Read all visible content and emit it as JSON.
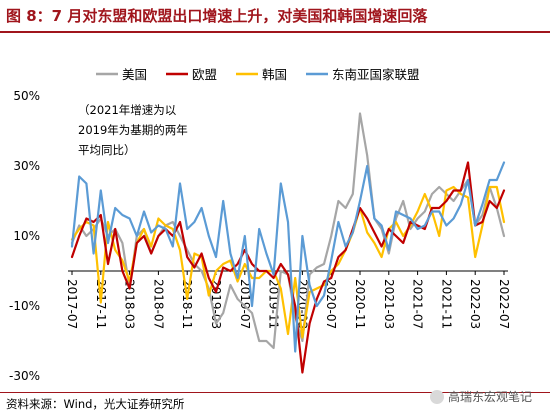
{
  "header": {
    "title": "图 8：7 月对东盟和欧盟出口增速上升，对美国和韩国增速回落"
  },
  "footer": {
    "source": "资料来源：Wind，光大证券研究所",
    "watermark": "高瑞东宏观笔记"
  },
  "colors": {
    "us": "#a6a6a6",
    "eu": "#c00000",
    "kr": "#ffc000",
    "asean": "#5b9bd5",
    "title": "#a0151c"
  },
  "chart_data": {
    "type": "line",
    "title": "",
    "xlabel": "",
    "ylabel": "",
    "ylim": [
      -30,
      50
    ],
    "yticks": [
      -30,
      -10,
      10,
      30,
      50
    ],
    "ytick_labels": [
      "-30%",
      "-10%",
      "10%",
      "30%",
      "50%"
    ],
    "xticks": [
      "2017-07",
      "2017-11",
      "2018-03",
      "2018-07",
      "2018-11",
      "2019-03",
      "2019-07",
      "2019-11",
      "2020-03",
      "2020-07",
      "2020-11",
      "2021-03",
      "2021-07",
      "2021-11",
      "2022-03",
      "2022-07"
    ],
    "legend_position": "top",
    "annotation": [
      "（2021年增速为以",
      "2019年为基期的两年",
      "平均同比）"
    ],
    "x": [
      "2017-07",
      "2017-08",
      "2017-09",
      "2017-10",
      "2017-11",
      "2017-12",
      "2018-01",
      "2018-02",
      "2018-03",
      "2018-04",
      "2018-05",
      "2018-06",
      "2018-07",
      "2018-08",
      "2018-09",
      "2018-10",
      "2018-11",
      "2018-12",
      "2019-01",
      "2019-02",
      "2019-03",
      "2019-04",
      "2019-05",
      "2019-06",
      "2019-07",
      "2019-08",
      "2019-09",
      "2019-10",
      "2019-11",
      "2019-12",
      "2020-01",
      "2020-02",
      "2020-03",
      "2020-04",
      "2020-05",
      "2020-06",
      "2020-07",
      "2020-08",
      "2020-09",
      "2020-10",
      "2020-11",
      "2020-12",
      "2021-01",
      "2021-02",
      "2021-03",
      "2021-04",
      "2021-05",
      "2021-06",
      "2021-07",
      "2021-08",
      "2021-09",
      "2021-10",
      "2021-11",
      "2021-12",
      "2022-01",
      "2022-02",
      "2022-03",
      "2022-04",
      "2022-05",
      "2022-06",
      "2022-07"
    ],
    "series": [
      {
        "name": "美国",
        "key": "us",
        "values": [
          8,
          13,
          10,
          12,
          15,
          10,
          12,
          8,
          -5,
          10,
          12,
          5,
          10,
          13,
          14,
          10,
          6,
          2,
          0,
          -5,
          -15,
          -12,
          -4,
          -8,
          -10,
          -12,
          -20,
          -20,
          -22,
          0,
          -1,
          -13,
          -20,
          -1,
          1,
          2,
          10,
          20,
          18,
          22,
          45,
          33,
          15,
          12,
          5,
          15,
          20,
          12,
          15,
          17,
          22,
          24,
          22,
          20,
          23,
          26,
          13,
          16,
          24,
          18,
          10
        ]
      },
      {
        "name": "欧盟",
        "key": "eu",
        "values": [
          4,
          10,
          15,
          14,
          16,
          2,
          12,
          0,
          -5,
          8,
          10,
          5,
          10,
          12,
          10,
          14,
          4,
          1,
          5,
          -2,
          -6,
          1,
          0,
          2,
          6,
          2,
          0,
          0,
          -2,
          2,
          -1,
          -10,
          -29,
          -15,
          -8,
          -3,
          -2,
          4,
          6,
          12,
          18,
          15,
          11,
          7,
          12,
          10,
          8,
          14,
          13,
          12,
          18,
          18,
          20,
          23,
          23,
          31,
          13,
          14,
          20,
          18,
          23
        ]
      },
      {
        "name": "韩国",
        "key": "kr",
        "values": [
          9,
          12,
          14,
          13,
          -9,
          14,
          6,
          3,
          -3,
          8,
          12,
          7,
          15,
          13,
          12,
          6,
          -8,
          5,
          4,
          -7,
          0,
          2,
          3,
          -3,
          2,
          -2,
          -2,
          0,
          0,
          -5,
          -18,
          -2,
          -19,
          -6,
          -5,
          -4,
          0,
          2,
          6,
          11,
          18,
          11,
          8,
          4,
          12,
          14,
          10,
          13,
          17,
          22,
          17,
          10,
          23,
          24,
          22,
          21,
          4,
          13,
          24,
          24,
          14
        ]
      },
      {
        "name": "东南亚国家联盟",
        "key": "asean",
        "values": [
          7,
          27,
          25,
          5,
          23,
          8,
          18,
          16,
          15,
          10,
          17,
          11,
          13,
          12,
          7,
          25,
          12,
          14,
          18,
          10,
          4,
          20,
          5,
          -2,
          10,
          -10,
          12,
          5,
          -1,
          25,
          14,
          -23,
          10,
          -4,
          -10,
          -7,
          3,
          14,
          7,
          11,
          20,
          30,
          15,
          13,
          6,
          17,
          16,
          15,
          12,
          13,
          17,
          17,
          13,
          15,
          19,
          26,
          13,
          19,
          26,
          26,
          31
        ]
      }
    ]
  }
}
